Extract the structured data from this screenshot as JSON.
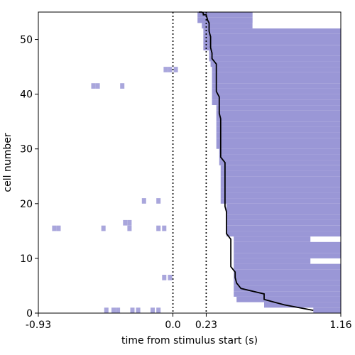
{
  "chart_data": {
    "type": "heatmap",
    "title": "",
    "xlabel": "time from stimulus start (s)",
    "ylabel": "cell number",
    "xlim": [
      -0.93,
      1.16
    ],
    "ylim": [
      0,
      55
    ],
    "x_tick_values": [
      -0.93,
      0.0,
      0.23,
      1.16
    ],
    "x_tick_labels": [
      "-0.93",
      "0.0",
      "0.23",
      "1.16"
    ],
    "y_tick_values": [
      0,
      10,
      20,
      30,
      40,
      50
    ],
    "y_tick_labels": [
      "0",
      "10",
      "20",
      "30",
      "40",
      "50"
    ],
    "grid": false,
    "vertical_lines": [
      {
        "x": 0.0,
        "style": "dotted",
        "color": "#000000"
      },
      {
        "x": 0.23,
        "style": "dotted",
        "color": "#000000"
      }
    ],
    "heatmap_color": "#9a97d6",
    "background_color": "#ffffff",
    "onset_times": [
      0.97,
      0.63,
      0.44,
      0.42,
      0.42,
      0.42,
      0.42,
      0.42,
      0.42,
      0.42,
      0.42,
      0.42,
      0.42,
      0.42,
      0.37,
      0.37,
      0.37,
      0.37,
      0.37,
      0.37,
      0.33,
      0.33,
      0.33,
      0.33,
      0.33,
      0.33,
      0.33,
      0.32,
      0.32,
      0.32,
      0.3,
      0.3,
      0.3,
      0.3,
      0.3,
      0.3,
      0.3,
      0.3,
      0.27,
      0.27,
      0.27,
      0.27,
      0.27,
      0.27,
      0.27,
      0.26,
      0.25,
      0.25,
      0.21,
      0.21,
      0.21,
      0.21,
      0.2,
      0.17,
      0.17
    ],
    "response_end_times": [
      1.16,
      1.16,
      1.16,
      1.16,
      1.16,
      1.16,
      1.16,
      1.16,
      1.16,
      0.95,
      1.16,
      1.16,
      1.16,
      0.95,
      1.16,
      1.16,
      1.16,
      1.16,
      1.16,
      1.16,
      1.16,
      1.16,
      1.16,
      1.16,
      1.16,
      1.16,
      1.16,
      1.16,
      1.16,
      1.16,
      1.16,
      1.16,
      1.16,
      1.16,
      1.16,
      1.16,
      1.16,
      1.16,
      1.16,
      1.16,
      1.16,
      1.16,
      1.16,
      1.16,
      1.16,
      1.16,
      1.16,
      1.16,
      1.16,
      1.16,
      1.16,
      1.16,
      0.55,
      0.55,
      0.55
    ],
    "onset_curve": {
      "x": [
        0.97,
        0.77,
        0.63,
        0.63,
        0.47,
        0.44,
        0.43,
        0.43,
        0.4,
        0.4,
        0.37,
        0.37,
        0.36,
        0.36,
        0.33,
        0.33,
        0.32,
        0.32,
        0.3,
        0.3,
        0.27,
        0.27,
        0.26,
        0.26,
        0.25,
        0.25,
        0.24,
        0.23,
        0.21,
        0.21,
        0.2,
        0.2,
        0.18,
        0.18
      ],
      "y": [
        0.5,
        1.5,
        2.5,
        3.5,
        4.5,
        5.5,
        6.5,
        7.5,
        8.5,
        13.5,
        14.5,
        18.5,
        19.5,
        27.5,
        28.5,
        35.5,
        36.5,
        39.5,
        40.5,
        45.5,
        46.5,
        47.5,
        48.5,
        50.5,
        51.5,
        53.0,
        53.5,
        54.5,
        54.5,
        54.8,
        55.0,
        55.0,
        55.0,
        55.0
      ]
    },
    "sparse_prestim_points": [
      {
        "cell": 0.5,
        "times": [
          -0.46,
          -0.41,
          -0.38,
          -0.28,
          -0.24,
          -0.14,
          -0.1
        ]
      },
      {
        "cell": 6.5,
        "times": [
          -0.06,
          -0.02
        ]
      },
      {
        "cell": 15.5,
        "times": [
          -0.82,
          -0.79,
          -0.48,
          -0.3,
          -0.1,
          -0.06
        ]
      },
      {
        "cell": 16.5,
        "times": [
          -0.33,
          -0.3
        ]
      },
      {
        "cell": 20.5,
        "times": [
          -0.2,
          -0.1
        ]
      },
      {
        "cell": 41.5,
        "times": [
          -0.55,
          -0.52,
          -0.35
        ]
      },
      {
        "cell": 44.5,
        "times": [
          -0.05,
          -0.02,
          0.02
        ]
      }
    ]
  }
}
